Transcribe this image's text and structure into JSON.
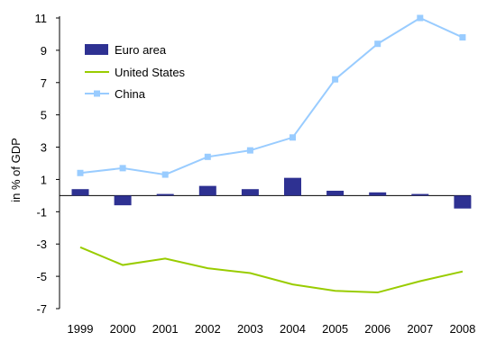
{
  "chart_data": {
    "type": "bar+line",
    "categories": [
      "1999",
      "2000",
      "2001",
      "2002",
      "2003",
      "2004",
      "2005",
      "2006",
      "2007",
      "2008"
    ],
    "ylabel": "in % of GDP",
    "xlabel": "",
    "ylim": [
      -7,
      11
    ],
    "yticks": [
      "11",
      "9",
      "7",
      "5",
      "3",
      "1",
      "-1",
      "-3",
      "-5",
      "-7"
    ],
    "legend_position": "top-left",
    "grid": false,
    "series": [
      {
        "name": "Euro area",
        "kind": "bar",
        "color": "#2e3192",
        "values": [
          0.4,
          -0.6,
          0.1,
          0.6,
          0.4,
          1.1,
          0.3,
          0.2,
          0.1,
          -0.8
        ]
      },
      {
        "name": "United States",
        "kind": "line",
        "color": "#99cc00",
        "values": [
          -3.2,
          -4.3,
          -3.9,
          -4.5,
          -4.8,
          -5.5,
          -5.9,
          -6.0,
          -5.3,
          -4.7
        ]
      },
      {
        "name": "China",
        "kind": "line-marker",
        "color": "#99ccff",
        "values": [
          1.4,
          1.7,
          1.3,
          2.4,
          2.8,
          3.6,
          7.2,
          9.4,
          11.0,
          9.8
        ]
      }
    ]
  }
}
